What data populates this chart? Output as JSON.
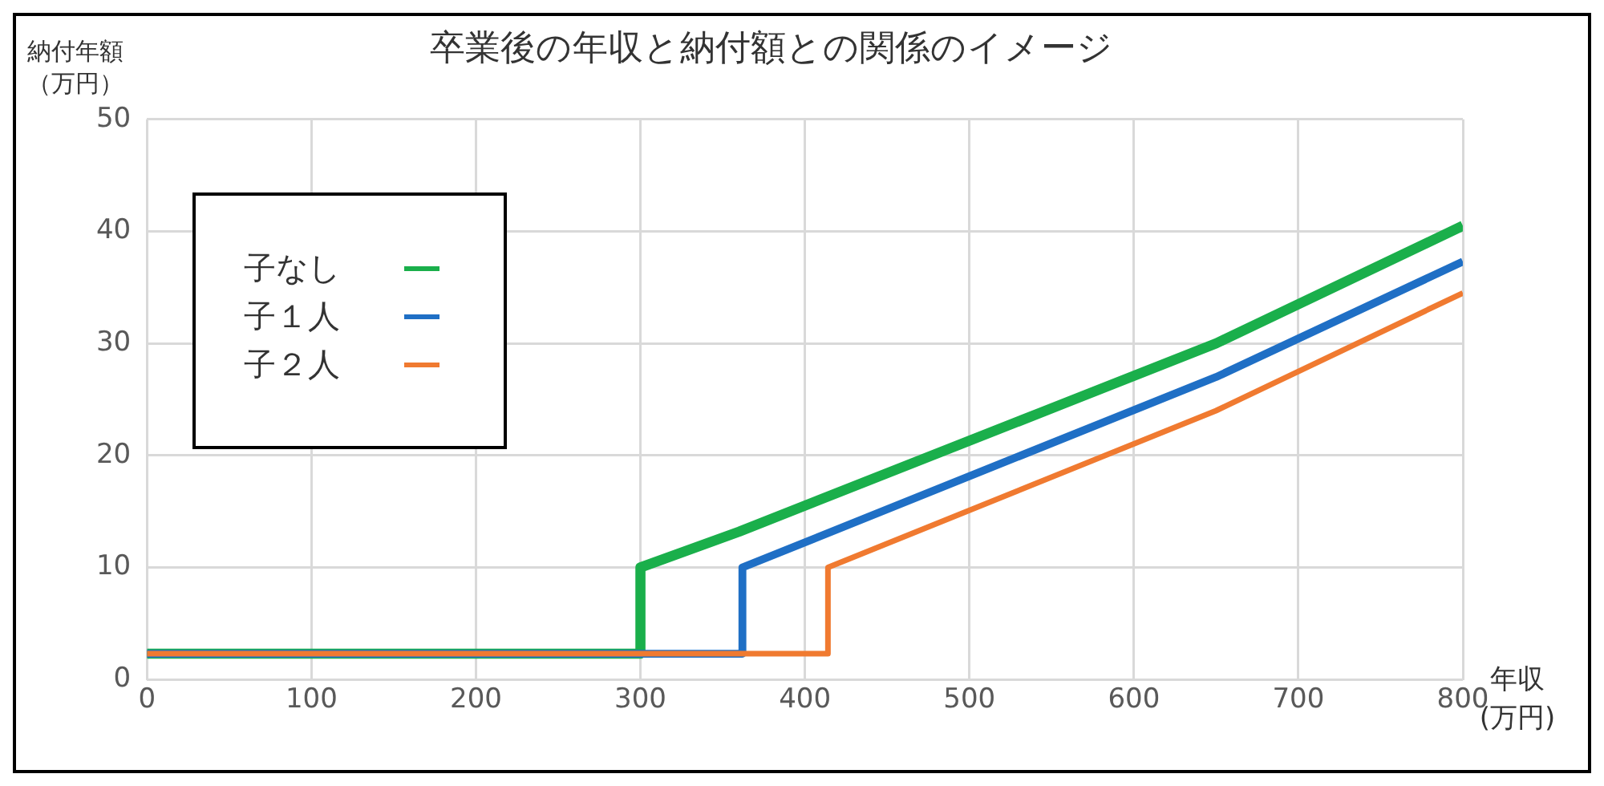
{
  "chart_data": {
    "type": "line",
    "title": "卒業後の年収と納付額との関係のイメージ",
    "xlabel": "年収(万円)",
    "ylabel": "納付年額（万円）",
    "xlim": [
      0,
      800
    ],
    "xticks": [
      0,
      100,
      200,
      300,
      400,
      500,
      600,
      700,
      800
    ],
    "ylim": [
      0,
      50
    ],
    "yticks": [
      0,
      10,
      20,
      30,
      40,
      50
    ],
    "grid": true,
    "legend": "top left",
    "marker": "none",
    "line_style": "solid",
    "series": [
      {
        "name": "子なし",
        "color": "#1aaf4b",
        "x": [
          0,
          300,
          300,
          360,
          650,
          800
        ],
        "values": [
          2.3,
          2.3,
          10,
          13.2,
          30,
          40.5
        ]
      },
      {
        "name": "子１人",
        "color": "#1f6fc5",
        "x": [
          0,
          362,
          362,
          650,
          800
        ],
        "values": [
          2.3,
          2.3,
          10,
          27,
          37.3
        ]
      },
      {
        "name": "子２人",
        "color": "#f07a30",
        "x": [
          0,
          414,
          414,
          650,
          800
        ],
        "values": [
          2.3,
          2.3,
          10,
          24,
          34.5
        ]
      }
    ]
  }
}
